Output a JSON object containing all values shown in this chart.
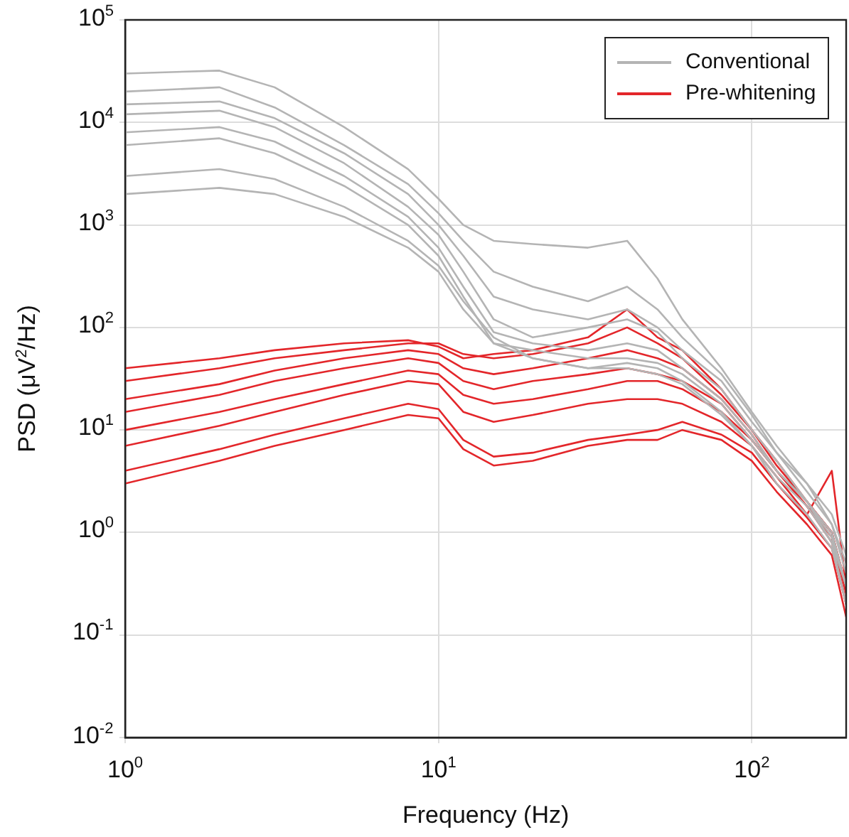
{
  "chart_data": {
    "type": "line",
    "xlabel": "Frequency (Hz)",
    "ylabel": "PSD (μV$^{2}$/Hz)",
    "log": "xy",
    "grid": true,
    "legend": "top right",
    "marker": "none",
    "line_style": "solid",
    "x": [
      1,
      2,
      3,
      5,
      8,
      10,
      12,
      15,
      20,
      30,
      40,
      50,
      60,
      80,
      100,
      120,
      150,
      180,
      200
    ],
    "xlim": [
      1,
      200
    ],
    "xticks": [
      {
        "value": 1,
        "label": "10$^{0}$"
      },
      {
        "value": 10,
        "label": "10$^{1}$"
      },
      {
        "value": 100,
        "label": "10$^{2}$"
      }
    ],
    "ylim": [
      0.01,
      100000
    ],
    "yticks": [
      {
        "value": 0.01,
        "label": "10$^{-2}$"
      },
      {
        "value": 0.1,
        "label": "10$^{-1}$"
      },
      {
        "value": 1,
        "label": "10$^{0}$"
      },
      {
        "value": 10,
        "label": "10$^{1}$"
      },
      {
        "value": 100,
        "label": "10$^{2}$"
      },
      {
        "value": 1000,
        "label": "10$^{3}$"
      },
      {
        "value": 10000,
        "label": "10$^{4}$"
      },
      {
        "value": 100000,
        "label": "10$^{5}$"
      }
    ],
    "series": [
      {
        "name": "Conventional",
        "color": "#b4b4b4",
        "values": [
          30000,
          32000,
          22000,
          9000,
          3500,
          1800,
          1000,
          700,
          650,
          600,
          700,
          300,
          120,
          40,
          15,
          7,
          3,
          1.5,
          0.6
        ]
      },
      {
        "color": "#b4b4b4",
        "values": [
          20000,
          22000,
          14000,
          6000,
          2500,
          1300,
          700,
          350,
          250,
          180,
          250,
          150,
          80,
          35,
          14,
          6,
          3,
          1.2,
          0.5
        ]
      },
      {
        "color": "#b4b4b4",
        "values": [
          15000,
          16000,
          11000,
          5000,
          2000,
          1000,
          500,
          200,
          150,
          120,
          150,
          100,
          60,
          30,
          12,
          6,
          2.5,
          1.2,
          0.4
        ]
      },
      {
        "color": "#b4b4b4",
        "values": [
          12000,
          13000,
          9000,
          4000,
          1500,
          800,
          350,
          120,
          80,
          100,
          120,
          90,
          50,
          25,
          10,
          5,
          2,
          1,
          0.3
        ]
      },
      {
        "color": "#b4b4b4",
        "values": [
          8000,
          9000,
          6500,
          3000,
          1200,
          600,
          250,
          90,
          70,
          60,
          70,
          60,
          40,
          20,
          9,
          4,
          2,
          0.9,
          0.3
        ]
      },
      {
        "color": "#b4b4b4",
        "values": [
          6000,
          7000,
          5000,
          2400,
          1000,
          500,
          200,
          70,
          60,
          50,
          50,
          45,
          35,
          18,
          8,
          4,
          2,
          0.8,
          0.2
        ]
      },
      {
        "color": "#b4b4b4",
        "values": [
          3000,
          3500,
          2800,
          1500,
          700,
          400,
          180,
          80,
          50,
          40,
          45,
          40,
          30,
          15,
          7,
          3.5,
          1.8,
          0.8,
          0.3
        ]
      },
      {
        "color": "#b4b4b4",
        "values": [
          2000,
          2300,
          2000,
          1200,
          600,
          350,
          150,
          70,
          50,
          40,
          40,
          35,
          28,
          14,
          7,
          3,
          1.5,
          0.7,
          0.2
        ]
      },
      {
        "name": "Pre-whitening",
        "color": "#e3262a",
        "values": [
          40,
          50,
          60,
          70,
          75,
          65,
          50,
          55,
          60,
          80,
          150,
          80,
          60,
          25,
          10,
          5,
          2,
          1,
          0.3
        ]
      },
      {
        "color": "#e3262a",
        "values": [
          30,
          40,
          50,
          60,
          70,
          70,
          55,
          50,
          55,
          70,
          100,
          70,
          50,
          22,
          10,
          4.5,
          2,
          1,
          0.3
        ]
      },
      {
        "color": "#e3262a",
        "values": [
          20,
          28,
          38,
          50,
          60,
          55,
          40,
          35,
          40,
          50,
          60,
          50,
          40,
          20,
          9,
          4,
          2,
          1,
          0.25
        ]
      },
      {
        "color": "#e3262a",
        "values": [
          15,
          22,
          30,
          40,
          50,
          45,
          30,
          25,
          30,
          35,
          40,
          35,
          30,
          18,
          8,
          4,
          1.8,
          0.9,
          0.2
        ]
      },
      {
        "color": "#e3262a",
        "values": [
          10,
          15,
          20,
          28,
          38,
          35,
          22,
          18,
          20,
          25,
          30,
          30,
          25,
          15,
          8,
          4,
          1.8,
          0.8,
          0.2
        ]
      },
      {
        "color": "#e3262a",
        "values": [
          7,
          11,
          15,
          22,
          30,
          28,
          15,
          12,
          14,
          18,
          20,
          20,
          18,
          12,
          7,
          3.5,
          1.5,
          4,
          0.3
        ]
      },
      {
        "color": "#e3262a",
        "values": [
          4,
          6.5,
          9,
          13,
          18,
          16,
          8,
          5.5,
          6,
          8,
          9,
          10,
          12,
          9,
          6,
          3,
          1.4,
          0.7,
          0.2
        ]
      },
      {
        "color": "#e3262a",
        "values": [
          3,
          5,
          7,
          10,
          14,
          13,
          6.5,
          4.5,
          5,
          7,
          8,
          8,
          10,
          8,
          5,
          2.5,
          1.2,
          0.6,
          0.15
        ]
      }
    ]
  }
}
